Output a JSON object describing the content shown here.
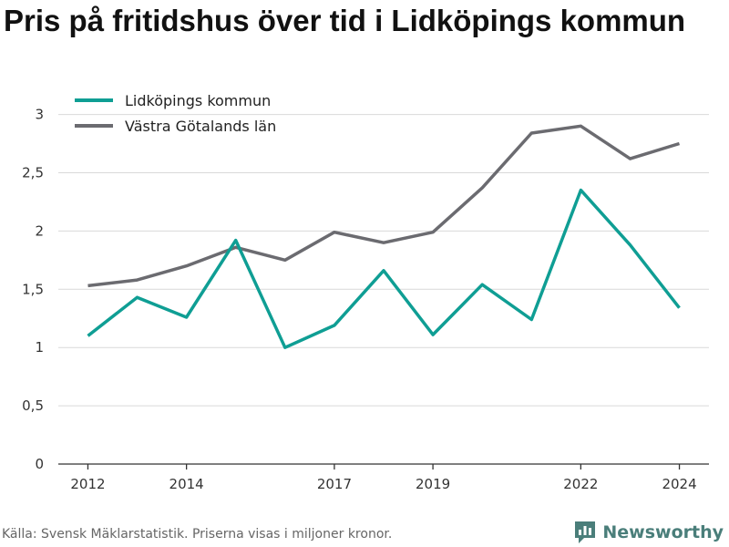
{
  "title": "Pris på fritidshus över tid i Lidköpings kommun",
  "source": "Källa: Svensk Mäklarstatistik. Priserna visas i miljoner kronor.",
  "brand": "Newsworthy",
  "colors": {
    "series_1": "#0f9e94",
    "series_2": "#6b6b70",
    "grid": "#d9d9d9",
    "axis": "#333333",
    "brand": "#4a7e7a"
  },
  "chart_data": {
    "type": "line",
    "title": "Pris på fritidshus över tid i Lidköpings kommun",
    "x": [
      2012,
      2013,
      2014,
      2015,
      2016,
      2017,
      2018,
      2019,
      2020,
      2021,
      2022,
      2023,
      2024
    ],
    "x_ticks": [
      "2012",
      "2014",
      "2017",
      "2019",
      "2022",
      "2024"
    ],
    "x_tick_values": [
      2012,
      2014,
      2017,
      2019,
      2022,
      2024
    ],
    "y_ticks": [
      "0",
      "0,5",
      "1",
      "1,5",
      "2",
      "2,5",
      "3"
    ],
    "y_tick_values": [
      0,
      0.5,
      1,
      1.5,
      2,
      2.5,
      3
    ],
    "xlim": [
      2011.4,
      2024.6
    ],
    "ylim": [
      0,
      3.2
    ],
    "grid": true,
    "legend_position": "top-left",
    "series": [
      {
        "name": "Lidköpings kommun",
        "values": [
          1.1,
          1.43,
          1.26,
          1.92,
          1.0,
          1.19,
          1.66,
          1.11,
          1.54,
          1.24,
          2.35,
          1.88,
          1.34
        ]
      },
      {
        "name": "Västra Götalands län",
        "values": [
          1.53,
          1.58,
          1.7,
          1.86,
          1.75,
          1.99,
          1.9,
          1.99,
          2.37,
          2.84,
          2.9,
          2.62,
          2.75
        ]
      }
    ]
  }
}
